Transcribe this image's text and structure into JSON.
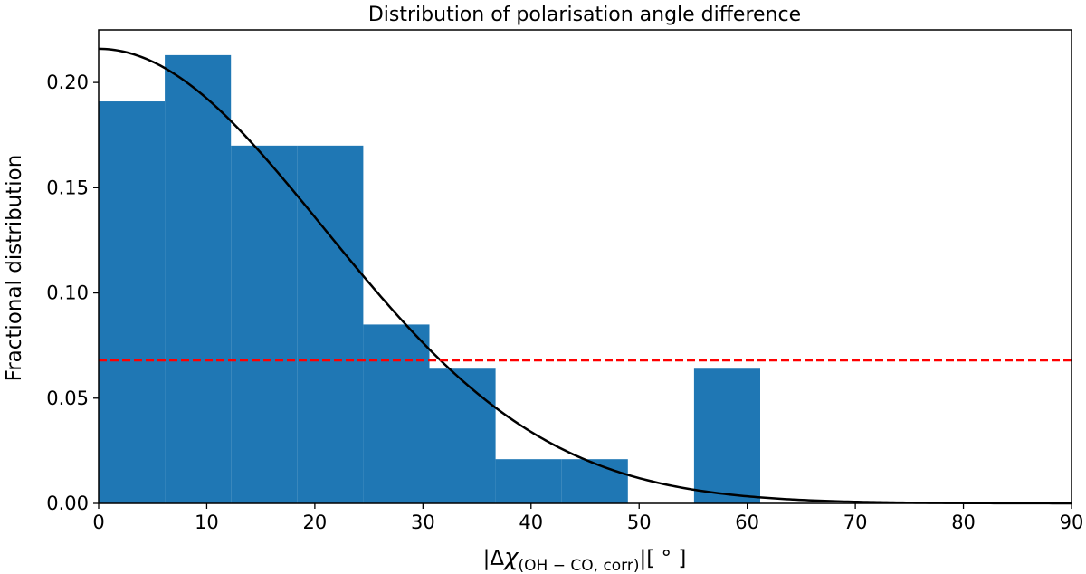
{
  "chart_data": {
    "type": "bar",
    "title": "Distribution of polarisation angle difference",
    "ylabel": "Fractional distribution",
    "xlabel": {
      "prefix": "|Δ",
      "chi": "χ",
      "subscript": "(OH − CO, corr)",
      "suffix": "|[ ° ]"
    },
    "xlim": [
      0,
      90
    ],
    "ylim": [
      0,
      0.225
    ],
    "xticks": [
      0,
      10,
      20,
      30,
      40,
      50,
      60,
      70,
      80,
      90
    ],
    "xtick_labels": [
      "0",
      "10",
      "20",
      "30",
      "40",
      "50",
      "60",
      "70",
      "80",
      "90"
    ],
    "yticks": [
      0,
      0.05,
      0.1,
      0.15,
      0.2
    ],
    "ytick_labels": [
      "0.00",
      "0.05",
      "0.10",
      "0.15",
      "0.20"
    ],
    "bins": [
      {
        "x0": 0,
        "x1": 6.12,
        "value": 0.191
      },
      {
        "x0": 6.12,
        "x1": 12.24,
        "value": 0.213
      },
      {
        "x0": 12.24,
        "x1": 18.36,
        "value": 0.17
      },
      {
        "x0": 18.36,
        "x1": 24.48,
        "value": 0.17
      },
      {
        "x0": 24.48,
        "x1": 30.6,
        "value": 0.085
      },
      {
        "x0": 30.6,
        "x1": 36.72,
        "value": 0.064
      },
      {
        "x0": 36.72,
        "x1": 42.84,
        "value": 0.021
      },
      {
        "x0": 42.84,
        "x1": 48.96,
        "value": 0.021
      },
      {
        "x0": 48.96,
        "x1": 55.08,
        "value": 0
      },
      {
        "x0": 55.08,
        "x1": 61.2,
        "value": 0.064
      }
    ],
    "bar_color": "#1f77b4",
    "gaussian_curve": {
      "amplitude": 0.216,
      "mean": 0,
      "sigma": 20.8,
      "color": "#000000"
    },
    "reference_line": {
      "y": 0.068,
      "color": "#ff0000",
      "style": "dashed"
    }
  }
}
